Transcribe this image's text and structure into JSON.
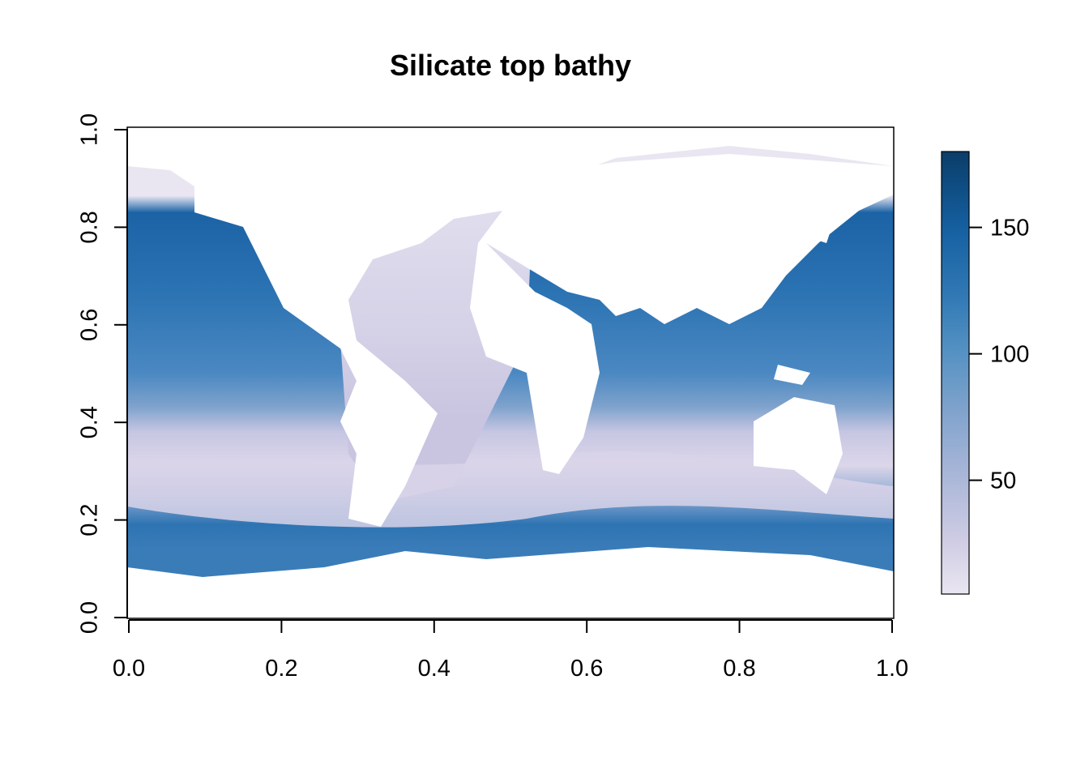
{
  "chart_data": {
    "type": "heatmap",
    "title": "Silicate top bathy",
    "xlabel": "",
    "ylabel": "",
    "xlim": [
      0,
      1
    ],
    "ylim": [
      0,
      1
    ],
    "x_ticks": [
      "0.0",
      "0.2",
      "0.4",
      "0.6",
      "0.8",
      "1.0"
    ],
    "y_ticks": [
      "0.0",
      "0.2",
      "0.4",
      "0.6",
      "0.8",
      "1.0"
    ],
    "x_tick_values": [
      0,
      0.2,
      0.4,
      0.6,
      0.8,
      1.0
    ],
    "y_tick_values": [
      0,
      0.2,
      0.4,
      0.6,
      0.8,
      1.0
    ],
    "legend_position": "right",
    "colorbar": {
      "range": [
        5,
        180
      ],
      "ticks": [
        "50",
        "100",
        "150"
      ],
      "tick_values": [
        50,
        100,
        150
      ],
      "colors": [
        "#e9e6f1",
        "#cfcce4",
        "#a9b6d8",
        "#7ea2cc",
        "#5491c3",
        "#2f78b4",
        "#1661a2",
        "#0e4b80",
        "#0b3d68"
      ]
    },
    "grid": false,
    "notes": "world ocean map; white = land/no data"
  }
}
